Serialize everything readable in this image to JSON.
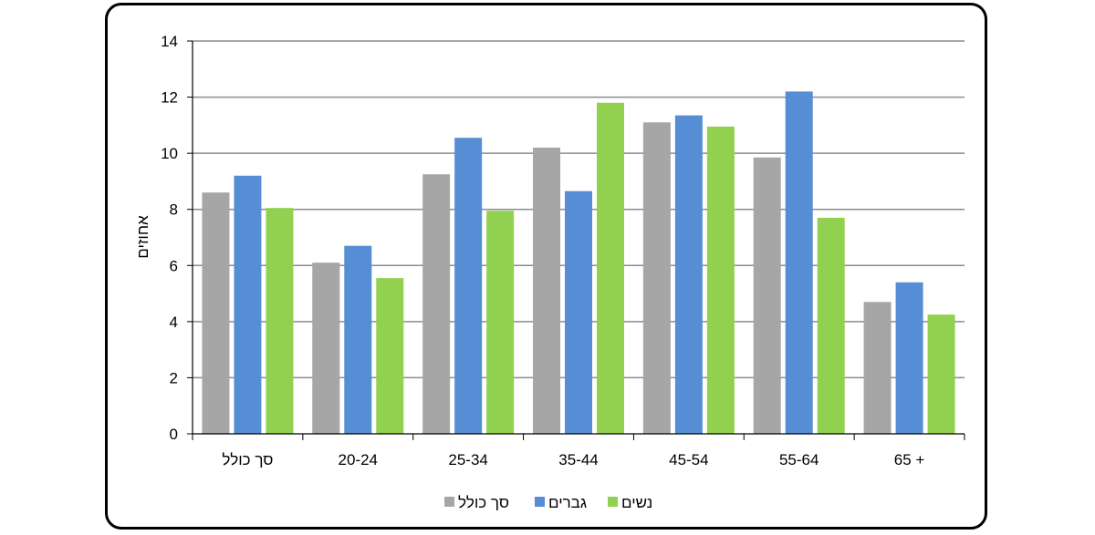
{
  "chart_data": {
    "type": "bar",
    "categories": [
      "סך כולל",
      "20-24",
      "25-34",
      "35-44",
      "45-54",
      "55-64",
      "65 +"
    ],
    "series": [
      {
        "name": "סך כולל",
        "color": "#a6a6a6",
        "values": [
          8.6,
          6.1,
          9.25,
          10.2,
          11.1,
          9.85,
          4.7
        ]
      },
      {
        "name": "גברים",
        "color": "#558ed5",
        "values": [
          9.2,
          6.7,
          10.55,
          8.65,
          11.35,
          12.2,
          5.4
        ]
      },
      {
        "name": "נשים",
        "color": "#92d050",
        "values": [
          8.05,
          5.55,
          7.95,
          11.8,
          10.95,
          7.7,
          4.25
        ]
      }
    ],
    "title": "",
    "xlabel": "",
    "ylabel": "אחוזים",
    "ylim": [
      0,
      14
    ],
    "yticks": [
      0,
      2,
      4,
      6,
      8,
      10,
      12,
      14
    ],
    "grid": true,
    "legend_position": "bottom"
  }
}
